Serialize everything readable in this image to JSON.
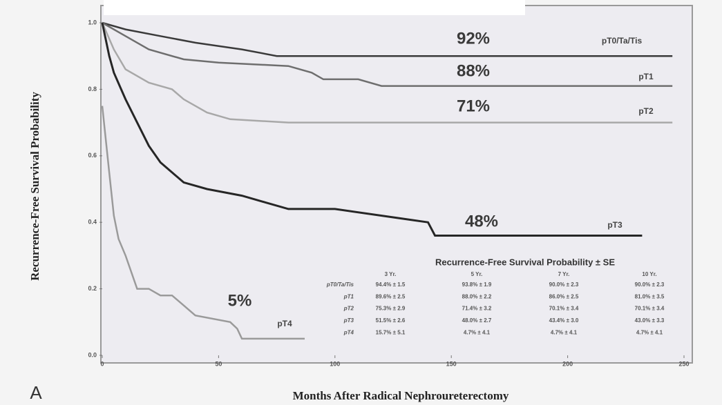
{
  "chart_data": {
    "type": "line",
    "ylabel": "Recurrence-Free Survival Probability",
    "xlabel": "Months After Radical Nephroureterectomy",
    "panel": "A",
    "xlim": [
      0,
      250
    ],
    "xticks": [
      0,
      50,
      100,
      150,
      200,
      250
    ],
    "ylim": [
      0,
      1
    ],
    "yticks": [
      {
        "value": 0,
        "label": "0.0"
      },
      0.2,
      0.4,
      0.6,
      0.8,
      {
        "value": 1,
        "label": "1.0"
      }
    ],
    "series": [
      {
        "name": "pT0/Ta/Tis",
        "color": "#3a3a3a",
        "x": [
          0,
          10,
          25,
          40,
          60,
          75,
          245
        ],
        "values": [
          1.0,
          0.98,
          0.96,
          0.94,
          0.92,
          0.9,
          0.9
        ]
      },
      {
        "name": "pT1",
        "color": "#6e6e6e",
        "x": [
          0,
          10,
          20,
          35,
          50,
          80,
          90,
          95,
          110,
          120,
          245
        ],
        "values": [
          1.0,
          0.96,
          0.92,
          0.89,
          0.88,
          0.87,
          0.85,
          0.83,
          0.83,
          0.81,
          0.81
        ]
      },
      {
        "name": "pT2",
        "color": "#a8a8a8",
        "x": [
          0,
          5,
          10,
          20,
          30,
          35,
          45,
          55,
          80,
          245
        ],
        "values": [
          1.0,
          0.92,
          0.86,
          0.82,
          0.8,
          0.77,
          0.73,
          0.71,
          0.7,
          0.7
        ]
      },
      {
        "name": "pT3",
        "color": "#262626",
        "x": [
          0,
          3,
          5,
          10,
          15,
          20,
          25,
          30,
          35,
          45,
          60,
          70,
          80,
          100,
          130,
          140,
          143,
          232
        ],
        "values": [
          1.0,
          0.9,
          0.85,
          0.77,
          0.7,
          0.63,
          0.58,
          0.55,
          0.52,
          0.5,
          0.48,
          0.46,
          0.44,
          0.44,
          0.41,
          0.4,
          0.36,
          0.36
        ]
      },
      {
        "name": "pT4",
        "color": "#9a9a9a",
        "x": [
          0,
          3,
          5,
          7,
          10,
          15,
          20,
          25,
          30,
          35,
          40,
          55,
          58,
          60,
          87
        ],
        "values": [
          0.75,
          0.55,
          0.42,
          0.35,
          0.3,
          0.2,
          0.2,
          0.18,
          0.18,
          0.15,
          0.12,
          0.1,
          0.08,
          0.05,
          0.05
        ]
      }
    ],
    "annotations": [
      "92%",
      "88%",
      "71%",
      "48%",
      "5%"
    ]
  },
  "table": {
    "title": "Recurrence-Free Survival Probability ± SE",
    "columns": [
      "3 Yr.",
      "5 Yr.",
      "7 Yr.",
      "10 Yr."
    ],
    "rows": [
      {
        "label": "pT0/Ta/Tis",
        "cells": [
          "94.4% ± 1.5",
          "93.8% ± 1.9",
          "90.0% ± 2.3",
          "90.0% ± 2.3"
        ]
      },
      {
        "label": "pT1",
        "cells": [
          "89.6% ± 2.5",
          "88.0% ± 2.2",
          "86.0% ± 2.5",
          "81.0% ± 3.5"
        ]
      },
      {
        "label": "pT2",
        "cells": [
          "75.3% ± 2.9",
          "71.4% ± 3.2",
          "70.1% ± 3.4",
          "70.1% ± 3.4"
        ]
      },
      {
        "label": "pT3",
        "cells": [
          "51.5% ± 2.6",
          "48.0% ± 2.7",
          "43.4% ± 3.0",
          "43.0% ± 3.3"
        ]
      },
      {
        "label": "pT4",
        "cells": [
          "15.7% ± 5.1",
          "4.7% ± 4.1",
          "4.7% ± 4.1",
          "4.7% ± 4.1"
        ]
      }
    ]
  }
}
